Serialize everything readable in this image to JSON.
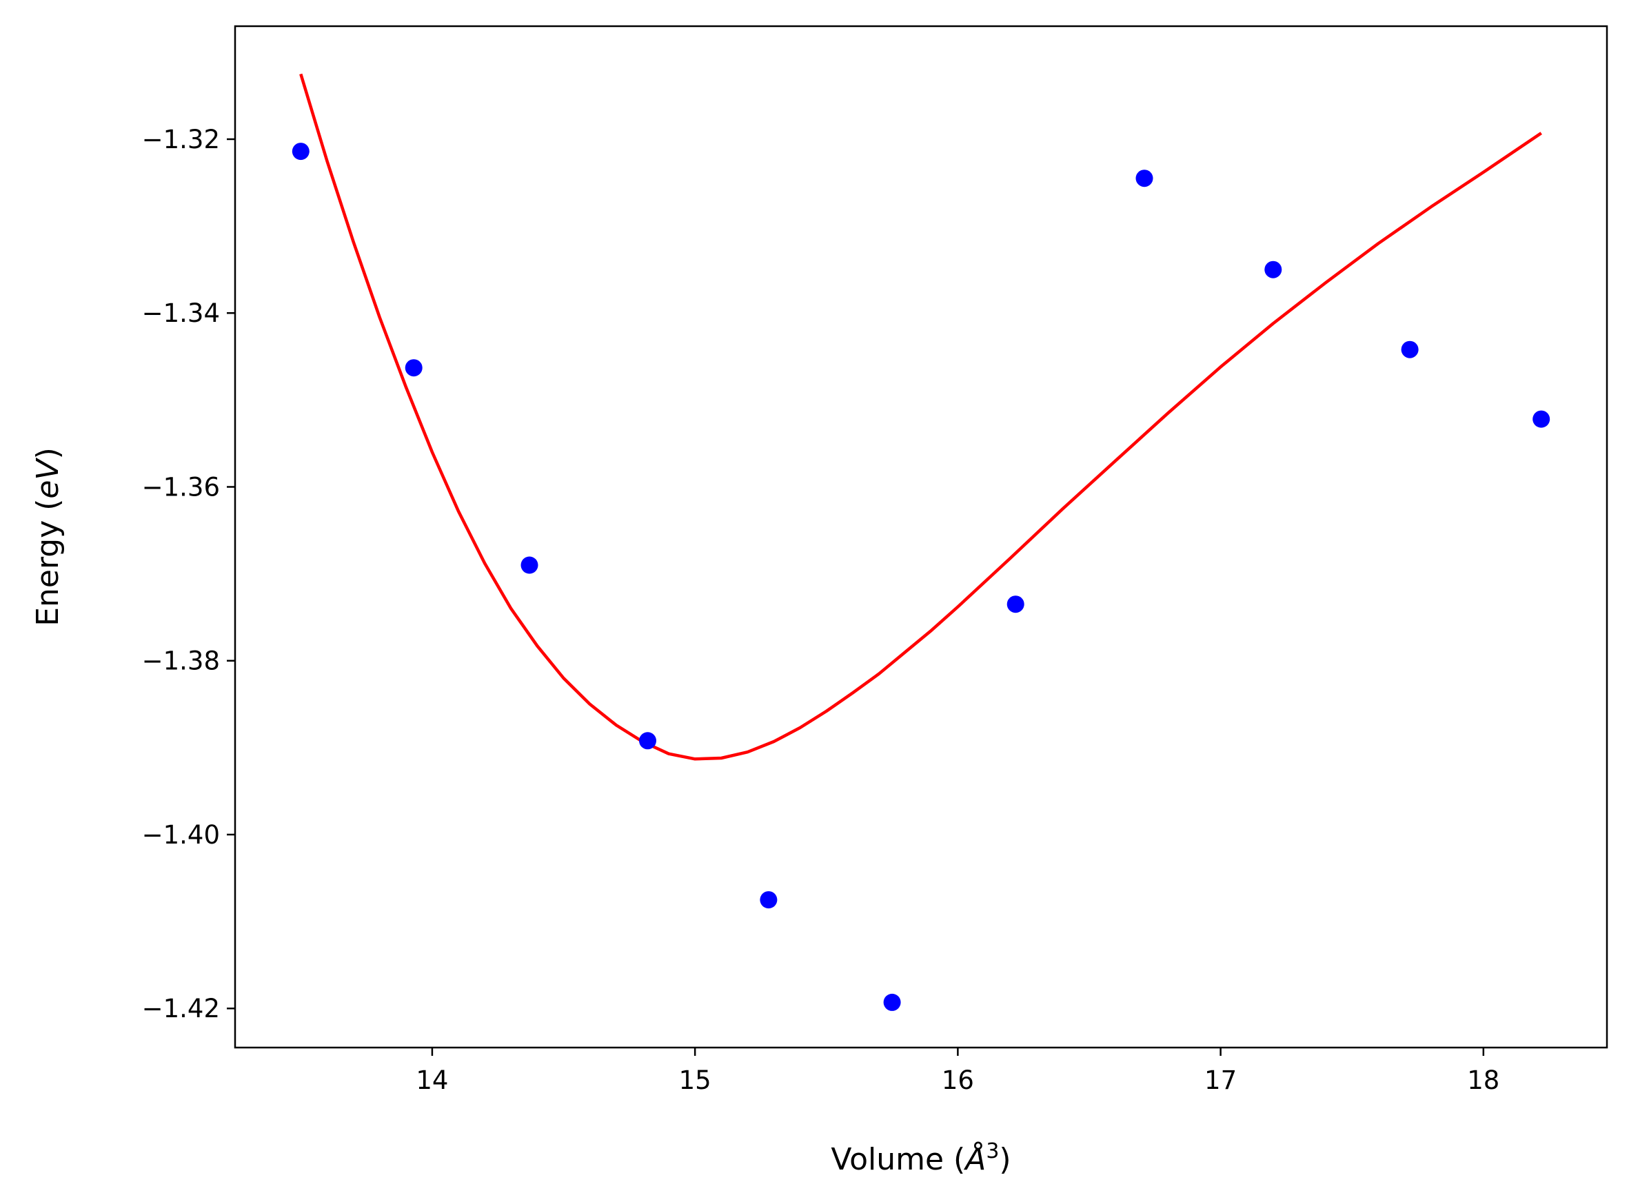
{
  "chart_data": {
    "type": "scatter",
    "xlabel": "Volume (Å³)",
    "ylabel": "Energy (eV)",
    "xlabel_parts": {
      "text": "Volume (",
      "symbol": "Å",
      "superscript": "3",
      "close": ")"
    },
    "ylabel_parts": {
      "text": "Energy (",
      "italic": "eV",
      "close": ")"
    },
    "xlim": [
      13.25,
      18.47
    ],
    "ylim": [
      -1.4245,
      -1.307
    ],
    "xticks": [
      14,
      15,
      16,
      17,
      18
    ],
    "xtick_labels": [
      "14",
      "15",
      "16",
      "17",
      "18"
    ],
    "yticks": [
      -1.32,
      -1.34,
      -1.36,
      -1.38,
      -1.4,
      -1.42
    ],
    "ytick_labels": [
      "−1.32",
      "−1.34",
      "−1.36",
      "−1.38",
      "−1.40",
      "−1.42"
    ],
    "grid": false,
    "series": [
      {
        "kind": "scatter",
        "color": "#0000ff",
        "x": [
          13.5,
          13.93,
          14.37,
          14.82,
          15.28,
          15.75,
          16.22,
          16.71,
          17.2,
          17.72,
          18.22
        ],
        "y": [
          -1.3214,
          -1.3463,
          -1.369,
          -1.3892,
          -1.4075,
          -1.4193,
          -1.3735,
          -1.3245,
          -1.335,
          -1.3442,
          -1.3522
        ]
      },
      {
        "kind": "line",
        "color": "#ff0000",
        "x": [
          13.5,
          13.6,
          13.7,
          13.8,
          13.9,
          14.0,
          14.1,
          14.2,
          14.3,
          14.4,
          14.5,
          14.6,
          14.7,
          14.8,
          14.9,
          15.0,
          15.1,
          15.2,
          15.3,
          15.4,
          15.5,
          15.6,
          15.7,
          15.8,
          15.9,
          16.0,
          16.2,
          16.4,
          16.6,
          16.8,
          17.0,
          17.2,
          17.4,
          17.6,
          17.8,
          18.0,
          18.22
        ],
        "y": [
          -1.3125,
          -1.3225,
          -1.3318,
          -1.3405,
          -1.3485,
          -1.356,
          -1.3628,
          -1.3688,
          -1.374,
          -1.3783,
          -1.382,
          -1.385,
          -1.3874,
          -1.3893,
          -1.3907,
          -1.3913,
          -1.3912,
          -1.3905,
          -1.3893,
          -1.3877,
          -1.3858,
          -1.3837,
          -1.3815,
          -1.379,
          -1.3765,
          -1.3738,
          -1.3682,
          -1.3625,
          -1.357,
          -1.3515,
          -1.3462,
          -1.3412,
          -1.3365,
          -1.332,
          -1.3278,
          -1.3238,
          -1.3193
        ]
      }
    ]
  }
}
